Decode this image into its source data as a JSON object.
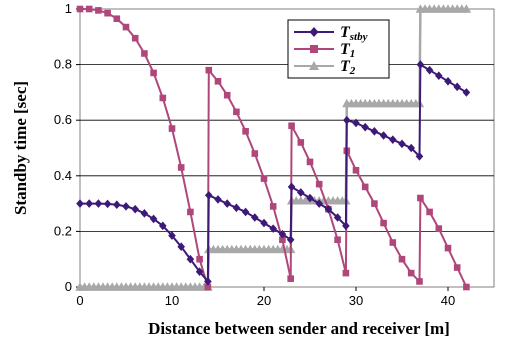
{
  "chart_data": {
    "type": "line",
    "title": "",
    "xlabel": "Distance between sender and receiver [m]",
    "ylabel": "Standby time [sec]",
    "xlim": [
      0,
      45
    ],
    "ylim": [
      0,
      1
    ],
    "xticks": [
      0,
      10,
      20,
      30,
      40
    ],
    "yticks": [
      0,
      0.2,
      0.4,
      0.6,
      0.8,
      1
    ],
    "ytick_labels": [
      "0",
      "0.2",
      "0.4",
      "0.6",
      "0.8",
      "1"
    ],
    "grid": "horizontal",
    "legend_position": "top-right",
    "series": [
      {
        "name": "T",
        "name_sub": "stby",
        "color": "#3d1a78",
        "marker": "diamond",
        "x": [
          0,
          1,
          2,
          3,
          4,
          5,
          6,
          7,
          8,
          9,
          10,
          11,
          12,
          13,
          13.9,
          14,
          15,
          16,
          17,
          18,
          19,
          20,
          21,
          22,
          22.9,
          23,
          24,
          25,
          26,
          27,
          28,
          28.9,
          29,
          30,
          31,
          32,
          33,
          34,
          35,
          36,
          36.9,
          37,
          38,
          39,
          40,
          41,
          42
        ],
        "y": [
          0.3,
          0.3,
          0.3,
          0.299,
          0.296,
          0.29,
          0.28,
          0.265,
          0.245,
          0.22,
          0.185,
          0.145,
          0.1,
          0.055,
          0.02,
          0.33,
          0.315,
          0.3,
          0.285,
          0.27,
          0.25,
          0.23,
          0.21,
          0.19,
          0.17,
          0.36,
          0.34,
          0.32,
          0.3,
          0.28,
          0.25,
          0.22,
          0.6,
          0.59,
          0.575,
          0.56,
          0.545,
          0.53,
          0.515,
          0.5,
          0.47,
          0.8,
          0.78,
          0.76,
          0.74,
          0.72,
          0.7
        ]
      },
      {
        "name": "T",
        "name_sub": "1",
        "color": "#b0477a",
        "marker": "square",
        "x": [
          0,
          1,
          2,
          3,
          4,
          5,
          6,
          7,
          8,
          9,
          10,
          11,
          12,
          13,
          13.9,
          14,
          15,
          16,
          17,
          18,
          19,
          20,
          21,
          22,
          22.9,
          23,
          24,
          25,
          26,
          27,
          28,
          28.9,
          29,
          30,
          31,
          32,
          33,
          34,
          35,
          36,
          36.9,
          37,
          38,
          39,
          40,
          41,
          42
        ],
        "y": [
          1.0,
          1.0,
          0.995,
          0.985,
          0.965,
          0.935,
          0.895,
          0.84,
          0.77,
          0.68,
          0.57,
          0.43,
          0.27,
          0.1,
          0.0,
          0.78,
          0.74,
          0.69,
          0.63,
          0.56,
          0.48,
          0.39,
          0.29,
          0.17,
          0.03,
          0.58,
          0.52,
          0.45,
          0.37,
          0.28,
          0.17,
          0.05,
          0.49,
          0.42,
          0.36,
          0.3,
          0.23,
          0.16,
          0.1,
          0.05,
          0.02,
          0.32,
          0.27,
          0.21,
          0.14,
          0.07,
          0.0
        ]
      },
      {
        "name": "T",
        "name_sub": "2",
        "color": "#a8a8a8",
        "marker": "triangle",
        "x": [
          0,
          2,
          4,
          6,
          8,
          10,
          12,
          13.9,
          14,
          16,
          18,
          20,
          22,
          22.9,
          23,
          25,
          27,
          28.9,
          29,
          31,
          33,
          35,
          36.9,
          37,
          39,
          41,
          42
        ],
        "y": [
          0,
          0,
          0,
          0,
          0,
          0,
          0,
          0,
          0.135,
          0.135,
          0.135,
          0.135,
          0.135,
          0.135,
          0.31,
          0.31,
          0.31,
          0.31,
          0.66,
          0.66,
          0.66,
          0.66,
          0.66,
          1.0,
          1.0,
          1.0,
          1.0
        ]
      }
    ]
  }
}
